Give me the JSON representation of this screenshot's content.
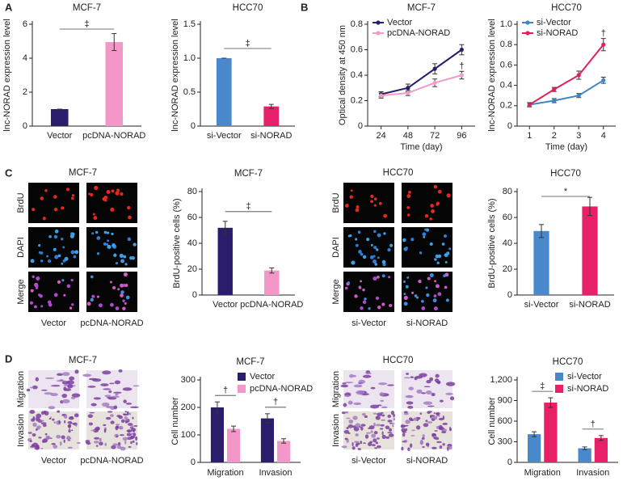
{
  "panel_labels": [
    "A",
    "B",
    "C",
    "D"
  ],
  "image_panels": [
    {
      "title": "MCF-7",
      "rows": [
        "BrdU",
        "DAPI",
        "Merge"
      ],
      "columns": [
        "Vector",
        "pcDNA-NORAD"
      ]
    },
    {
      "title": "HCC70",
      "rows": [
        "BrdU",
        "DAPI",
        "Merge"
      ],
      "columns": [
        "si-Vector",
        "si-NORAD"
      ]
    },
    {
      "title": "MCF-7",
      "rows": [
        "Migration",
        "Invasion"
      ],
      "columns": [
        "Vector",
        "pcDNA-NORAD"
      ]
    },
    {
      "title": "HCC70",
      "rows": [
        "Migration",
        "Invasion"
      ],
      "columns": [
        "si-Vector",
        "si-NORAD"
      ]
    }
  ],
  "chart_data": [
    {
      "type": "bar",
      "title": "MCF-7",
      "y_label": "lnc-NORAD expression level",
      "categories": [
        "Vector",
        "pcDNA-NORAD"
      ],
      "values": [
        1,
        4.95
      ],
      "errors": [
        0,
        0.5
      ],
      "colors": [
        "#2b1d6b",
        "#f397c8"
      ],
      "ylim": [
        0,
        6
      ],
      "yticks": [
        0,
        2,
        4,
        6
      ],
      "significance": "‡"
    },
    {
      "type": "bar",
      "title": "HCC70",
      "y_label": "lnc-NORAD expression level",
      "categories": [
        "si-Vector",
        "si-NORAD"
      ],
      "values": [
        1,
        0.29
      ],
      "errors": [
        0,
        0.03
      ],
      "colors": [
        "#4a88cc",
        "#e8206a"
      ],
      "ylim": [
        0,
        1.5
      ],
      "yticks": [
        0,
        0.5,
        {
          "value": 1,
          "label": "1.0"
        },
        1.5
      ],
      "significance": "‡"
    },
    {
      "type": "line",
      "title": "MCF-7",
      "y_label": "Optical density at 450 nm",
      "x_label": "Time (day)",
      "x": [
        24,
        48,
        72,
        96
      ],
      "xlim": [
        12,
        108
      ],
      "xticks": [
        24,
        48,
        72,
        96
      ],
      "ylim": [
        0,
        0.8
      ],
      "yticks": [
        0,
        0.2,
        0.4,
        0.6,
        0.8
      ],
      "legend": "upper-left",
      "series": [
        {
          "name": "Vector",
          "color": "#2b1d6b",
          "values": [
            0.25,
            0.3,
            0.45,
            0.6
          ],
          "errors": [
            0.02,
            0.03,
            0.04,
            0.04
          ]
        },
        {
          "name": "pcDNA-NORAD",
          "color": "#f39ac9",
          "values": [
            0.24,
            0.26,
            0.34,
            0.4
          ],
          "errors": [
            0.02,
            0.02,
            0.03,
            0.03
          ],
          "annotation": "†"
        }
      ]
    },
    {
      "type": "line",
      "title": "HCC70",
      "y_label": "lnc-NORAD expression level",
      "x_label": "Time (day)",
      "x": [
        1,
        2,
        3,
        4
      ],
      "xlim": [
        0.5,
        4.5
      ],
      "xticks": [
        1,
        2,
        3,
        4
      ],
      "ylim": [
        0,
        1
      ],
      "yticks": [
        0,
        0.2,
        0.4,
        0.6,
        0.8,
        {
          "value": 1,
          "label": "1.0"
        }
      ],
      "legend": "upper-left",
      "series": [
        {
          "name": "si-Vector",
          "color": "#3f86c6",
          "values": [
            0.21,
            0.25,
            0.3,
            0.45
          ],
          "errors": [
            0.02,
            0.02,
            0.02,
            0.03
          ]
        },
        {
          "name": "si-NORAD",
          "color": "#e0205f",
          "values": [
            0.21,
            0.36,
            0.5,
            0.8
          ],
          "errors": [
            0.02,
            0.02,
            0.04,
            0.06
          ],
          "annotation": "†"
        }
      ]
    },
    {
      "type": "bar",
      "title": "MCF-7",
      "y_label": "BrdU-positive cells (%)",
      "categories": [
        "Vector",
        "pcDNA-NORAD"
      ],
      "values": [
        52,
        19
      ],
      "errors": [
        5,
        2
      ],
      "colors": [
        "#2b1d6b",
        "#f397c8"
      ],
      "ylim": [
        0,
        80
      ],
      "yticks": [
        0,
        20,
        40,
        60,
        80
      ],
      "significance": "‡"
    },
    {
      "type": "bar",
      "title": "HCC70",
      "y_label": "BrdU-positive cells (%)",
      "categories": [
        "si-Vector",
        "si-NORAD"
      ],
      "values": [
        49.5,
        68.5
      ],
      "errors": [
        5,
        7
      ],
      "colors": [
        "#4a88cc",
        "#e8206a"
      ],
      "ylim": [
        0,
        80
      ],
      "yticks": [
        0,
        20,
        40,
        60,
        80
      ],
      "significance": "*"
    },
    {
      "type": "grouped-bar",
      "title": "MCF-7",
      "y_label": "Cell number",
      "categories": [
        "Migration",
        "Invasion"
      ],
      "ylim": [
        0,
        300
      ],
      "yticks": [
        0,
        100,
        200,
        300
      ],
      "legend": "upper-right",
      "significance": [
        "†",
        "†"
      ],
      "series": [
        {
          "name": "Vector",
          "color": "#2b1d6b",
          "values": [
            200,
            160
          ],
          "errors": [
            20,
            17
          ]
        },
        {
          "name": "pcDNA-NORAD",
          "color": "#f397c8",
          "values": [
            122,
            78
          ],
          "errors": [
            10,
            8
          ]
        }
      ]
    },
    {
      "type": "grouped-bar",
      "title": "HCC70",
      "y_label": "Cell number",
      "categories": [
        "Migration",
        "Invasion"
      ],
      "ylim": [
        0,
        1200
      ],
      "yticks": [
        0,
        300,
        600,
        900,
        {
          "value": 1200,
          "label": "1,200"
        }
      ],
      "legend": "upper-right",
      "significance": [
        "‡",
        "†"
      ],
      "series": [
        {
          "name": "si-Vector",
          "color": "#4a88cc",
          "values": [
            410,
            205
          ],
          "errors": [
            35,
            20
          ]
        },
        {
          "name": "si-NORAD",
          "color": "#e8206a",
          "values": [
            870,
            355
          ],
          "errors": [
            70,
            35
          ]
        }
      ]
    }
  ]
}
